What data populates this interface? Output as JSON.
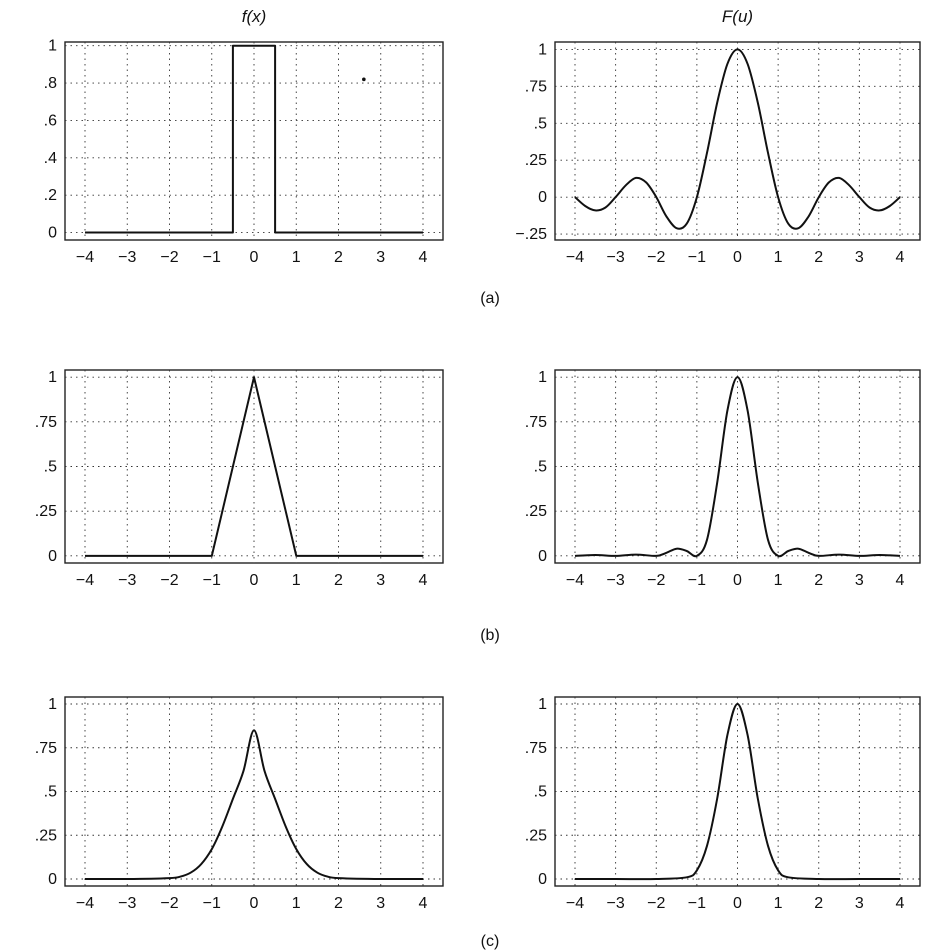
{
  "chart_data": [
    {
      "type": "line",
      "panel": "a-left",
      "title": "f(x)",
      "x_ticks": [
        "−4",
        "−3",
        "−2",
        "−1",
        "0",
        "1",
        "2",
        "3",
        "4"
      ],
      "y_ticks": [
        "0",
        ".2",
        ".4",
        ".6",
        ".8",
        "1"
      ],
      "y_tick_values": [
        0,
        0.2,
        0.4,
        0.6,
        0.8,
        1
      ],
      "xlim": [
        -4,
        4
      ],
      "ylim": [
        -0.04,
        1.02
      ],
      "series": [
        {
          "x": [
            -4,
            -0.5,
            -0.5,
            0.5,
            0.5,
            4
          ],
          "y": [
            0,
            0,
            1,
            1,
            0,
            0
          ]
        }
      ],
      "annotations": [
        {
          "x": 2.6,
          "y": 0.82,
          "type": "dot"
        }
      ]
    },
    {
      "type": "line",
      "panel": "a-right",
      "title": "F(u)",
      "x_ticks": [
        "−4",
        "−3",
        "−2",
        "−1",
        "0",
        "1",
        "2",
        "3",
        "4"
      ],
      "y_ticks": [
        "−.25",
        "0",
        ".25",
        ".5",
        ".75",
        "1"
      ],
      "y_tick_values": [
        -0.25,
        0,
        0.25,
        0.5,
        0.75,
        1
      ],
      "xlim": [
        -4,
        4
      ],
      "ylim": [
        -0.29,
        1.05
      ],
      "series": [
        {
          "x": [
            -4,
            -3.75,
            -3.5,
            -3.25,
            -3,
            -2.75,
            -2.5,
            -2.25,
            -2,
            -1.75,
            -1.5,
            -1.25,
            -1,
            -0.75,
            -0.5,
            -0.25,
            0,
            0.25,
            0.5,
            0.75,
            1,
            1.25,
            1.5,
            1.75,
            2,
            2.25,
            2.5,
            2.75,
            3,
            3.25,
            3.5,
            3.75,
            4
          ],
          "y": [
            0,
            -0.06,
            -0.09,
            -0.07,
            0,
            0.08,
            0.13,
            0.1,
            0,
            -0.13,
            -0.21,
            -0.18,
            0,
            0.3,
            0.64,
            0.9,
            1,
            0.9,
            0.64,
            0.3,
            0,
            -0.18,
            -0.21,
            -0.13,
            0,
            0.1,
            0.13,
            0.08,
            0,
            -0.07,
            -0.09,
            -0.06,
            0
          ]
        }
      ]
    },
    {
      "type": "line",
      "panel": "b-left",
      "x_ticks": [
        "−4",
        "−3",
        "−2",
        "−1",
        "0",
        "1",
        "2",
        "3",
        "4"
      ],
      "y_ticks": [
        "0",
        ".25",
        ".5",
        ".75",
        "1"
      ],
      "y_tick_values": [
        0,
        0.25,
        0.5,
        0.75,
        1
      ],
      "xlim": [
        -4,
        4
      ],
      "ylim": [
        -0.04,
        1.04
      ],
      "series": [
        {
          "x": [
            -4,
            -1,
            0,
            1,
            4
          ],
          "y": [
            0,
            0,
            1,
            0,
            0
          ]
        }
      ]
    },
    {
      "type": "line",
      "panel": "b-right",
      "x_ticks": [
        "−4",
        "−3",
        "−2",
        "−1",
        "0",
        "1",
        "2",
        "3",
        "4"
      ],
      "y_ticks": [
        "0",
        ".25",
        ".5",
        ".75",
        "1"
      ],
      "y_tick_values": [
        0,
        0.25,
        0.5,
        0.75,
        1
      ],
      "xlim": [
        -4,
        4
      ],
      "ylim": [
        -0.04,
        1.04
      ],
      "series": [
        {
          "x": [
            -4,
            -3.5,
            -3,
            -2.5,
            -2,
            -1.75,
            -1.5,
            -1.25,
            -1,
            -0.75,
            -0.5,
            -0.25,
            0,
            0.25,
            0.5,
            0.75,
            1,
            1.25,
            1.5,
            1.75,
            2,
            2.5,
            3,
            3.5,
            4
          ],
          "y": [
            0,
            0.005,
            0,
            0.007,
            0,
            0.017,
            0.04,
            0.027,
            0,
            0.09,
            0.41,
            0.81,
            1,
            0.81,
            0.41,
            0.09,
            0,
            0.027,
            0.04,
            0.017,
            0,
            0.007,
            0,
            0.005,
            0
          ]
        }
      ]
    },
    {
      "type": "line",
      "panel": "c-left",
      "x_ticks": [
        "−4",
        "−3",
        "−2",
        "−1",
        "0",
        "1",
        "2",
        "3",
        "4"
      ],
      "y_ticks": [
        "0",
        ".25",
        ".5",
        ".75",
        "1"
      ],
      "y_tick_values": [
        0,
        0.25,
        0.5,
        0.75,
        1
      ],
      "xlim": [
        -4,
        4
      ],
      "ylim": [
        -0.04,
        1.04
      ],
      "series": [
        {
          "x": [
            -4,
            -3,
            -2,
            -1.75,
            -1.5,
            -1.25,
            -1,
            -0.75,
            -0.5,
            -0.25,
            0,
            0.25,
            0.5,
            0.75,
            1,
            1.25,
            1.5,
            1.75,
            2,
            3,
            4
          ],
          "y": [
            0,
            0,
            0.005,
            0.013,
            0.036,
            0.085,
            0.171,
            0.3,
            0.458,
            0.616,
            0.85,
            0.616,
            0.458,
            0.3,
            0.171,
            0.085,
            0.036,
            0.013,
            0.005,
            0,
            0
          ]
        }
      ]
    },
    {
      "type": "line",
      "panel": "c-right",
      "x_ticks": [
        "−4",
        "−3",
        "−2",
        "−1",
        "0",
        "1",
        "2",
        "3",
        "4"
      ],
      "y_ticks": [
        "0",
        ".25",
        ".5",
        ".75",
        "1"
      ],
      "y_tick_values": [
        0,
        0.25,
        0.5,
        0.75,
        1
      ],
      "xlim": [
        -4,
        4
      ],
      "ylim": [
        -0.04,
        1.04
      ],
      "series": [
        {
          "x": [
            -4,
            -3,
            -2,
            -1.25,
            -1,
            -0.75,
            -0.5,
            -0.25,
            0,
            0.25,
            0.5,
            0.75,
            1,
            1.25,
            2,
            3,
            4
          ],
          "y": [
            0,
            0,
            0,
            0.01,
            0.05,
            0.19,
            0.46,
            0.82,
            1,
            0.82,
            0.46,
            0.19,
            0.05,
            0.01,
            0,
            0,
            0
          ]
        }
      ]
    }
  ],
  "row_labels": [
    "(a)",
    "(b)",
    "(c)"
  ]
}
